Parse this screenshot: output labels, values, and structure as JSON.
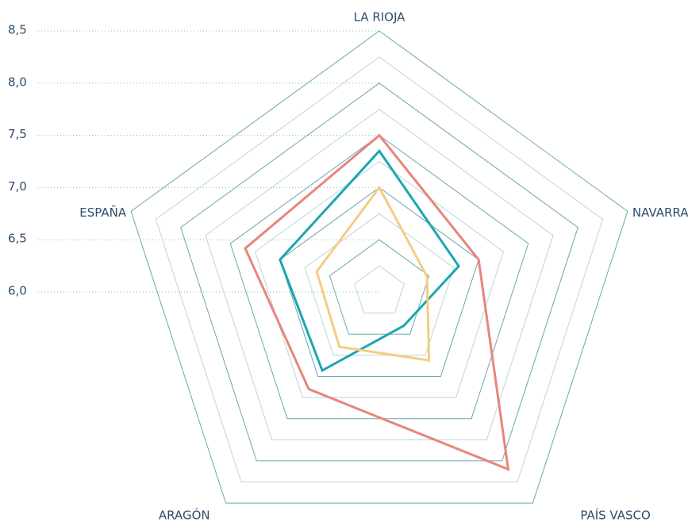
{
  "chart_data": {
    "type": "radar",
    "categories": [
      "LA RIOJA",
      "NAVARRA",
      "PAÍS VASCO",
      "ARAGÓN",
      "ESPAÑA"
    ],
    "ylim": [
      6.0,
      8.5
    ],
    "yticks": [
      {
        "value": 6.0,
        "label": "6,0"
      },
      {
        "value": 6.5,
        "label": "6,5"
      },
      {
        "value": 7.0,
        "label": "7,0"
      },
      {
        "value": 7.5,
        "label": "7,5"
      },
      {
        "value": 8.0,
        "label": "8,0"
      },
      {
        "value": 8.5,
        "label": "8,5"
      }
    ],
    "series": [
      {
        "color": "#e8857b",
        "values": [
          7.5,
          7.0,
          8.1,
          7.15,
          7.35
        ]
      },
      {
        "color": "#1ba6b3",
        "values": [
          7.35,
          6.8,
          6.4,
          6.93,
          7.0
        ]
      },
      {
        "color": "#f4cd82",
        "values": [
          7.0,
          6.48,
          6.81,
          6.65,
          6.63
        ]
      }
    ]
  }
}
